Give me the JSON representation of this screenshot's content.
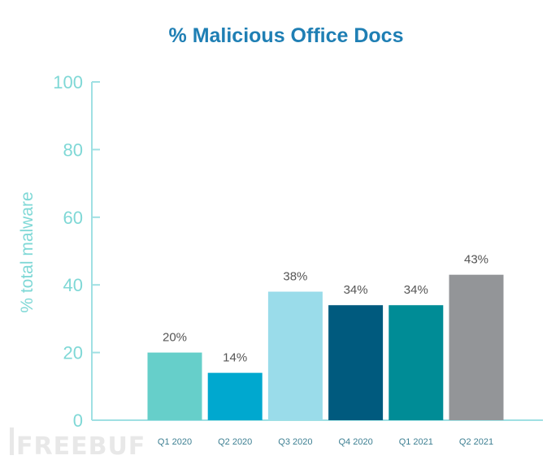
{
  "chart_data": {
    "type": "bar",
    "title": "% Malicious Office Docs",
    "ylabel": "% total malware",
    "xlabel": "",
    "ylim": [
      0,
      100
    ],
    "yticks": [
      0,
      20,
      40,
      60,
      80,
      100
    ],
    "grid": false,
    "categories": [
      "Q1 2020",
      "Q2 2020",
      "Q3 2020",
      "Q4 2020",
      "Q1 2021",
      "Q2 2021"
    ],
    "values": [
      20,
      14,
      38,
      34,
      34,
      43
    ],
    "data_labels": [
      "20%",
      "14%",
      "38%",
      "34%",
      "34%",
      "43%"
    ],
    "colors": [
      "#66cfca",
      "#00a8cf",
      "#9adcea",
      "#005a7e",
      "#008c96",
      "#939598"
    ],
    "axis_color": "#9fe0e3"
  },
  "watermark": "FREEBUF"
}
